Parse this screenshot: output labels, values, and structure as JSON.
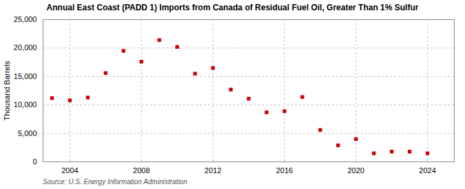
{
  "chart_data": {
    "type": "scatter",
    "title": "Annual East Coast (PADD 1) Imports from Canada of Residual Fuel Oil, Greater Than 1% Sulfur",
    "ylabel": "Thousand Barrels",
    "source": "Source: U.S. Energy Information Administration",
    "x": [
      2003,
      2004,
      2005,
      2006,
      2007,
      2008,
      2009,
      2010,
      2011,
      2012,
      2013,
      2014,
      2015,
      2016,
      2017,
      2018,
      2019,
      2020,
      2021,
      2022,
      2023,
      2024
    ],
    "values": [
      11200,
      10800,
      11300,
      15600,
      19500,
      17600,
      21400,
      20200,
      15500,
      16500,
      12700,
      11100,
      8700,
      8900,
      11400,
      5600,
      2900,
      4000,
      1500,
      1800,
      1800,
      1500
    ],
    "color": "#cc0000",
    "marker": "square",
    "xlim": [
      2002.5,
      2025.5
    ],
    "xticks": [
      2004,
      2008,
      2012,
      2016,
      2020,
      2024
    ],
    "ylim": [
      0,
      25000
    ],
    "yticks": [
      0,
      {
        "value": 5000,
        "label": "5,000"
      },
      {
        "value": 10000,
        "label": "10,000"
      },
      {
        "value": 15000,
        "label": "15,000"
      },
      {
        "value": 20000,
        "label": "20,000"
      },
      {
        "value": 25000,
        "label": "25,000"
      }
    ],
    "grid": true
  }
}
